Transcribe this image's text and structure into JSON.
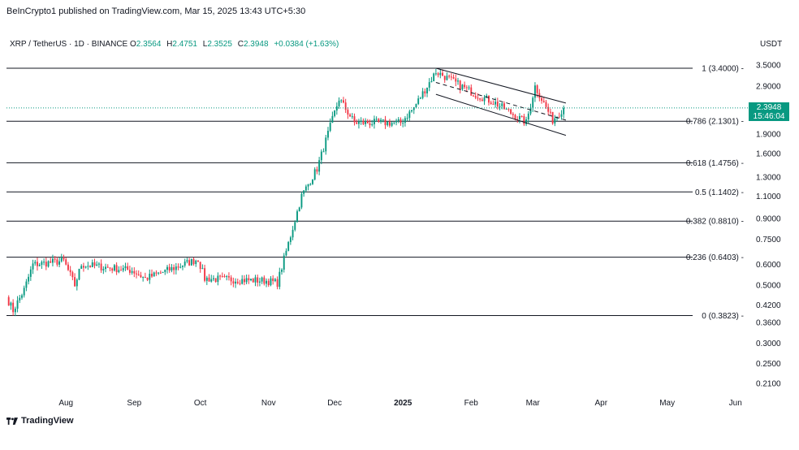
{
  "header": {
    "publisher": "BeInCrypto1 published on TradingView.com, Mar 15, 2025 13:43 UTC+5:30"
  },
  "symbol": {
    "title": "XRP / TetherUS · 1D · BINANCE",
    "open_label": "O",
    "open": "2.3564",
    "high_label": "H",
    "high": "2.4751",
    "low_label": "L",
    "low": "2.3525",
    "close_label": "C",
    "close": "2.3948",
    "change": "+0.0384 (+1.63%)"
  },
  "currency": "USDT",
  "last_price": {
    "value": "2.3948",
    "countdown": "15:46:04"
  },
  "footer": {
    "brand": "TradingView"
  },
  "colors": {
    "up": "#089981",
    "down": "#f23645",
    "level": "#131722",
    "grid": "#f0f3fa"
  },
  "chart_data": {
    "type": "candlestick",
    "y_scale": "log",
    "y_ticks": [
      "3.5000",
      "2.9000",
      "2.3000",
      "1.9000",
      "1.6000",
      "1.3000",
      "1.1000",
      "0.9000",
      "0.7500",
      "0.6000",
      "0.5000",
      "0.4200",
      "0.3600",
      "0.3000",
      "0.2500",
      "0.2100"
    ],
    "y_tick_values": [
      3.5,
      2.9,
      2.3,
      1.9,
      1.6,
      1.3,
      1.1,
      0.9,
      0.75,
      0.6,
      0.5,
      0.42,
      0.36,
      0.3,
      0.25,
      0.21
    ],
    "x_ticks": [
      "Aug",
      "Sep",
      "Oct",
      "Nov",
      "Dec",
      "2025",
      "Feb",
      "Mar",
      "Apr",
      "May",
      "Jun"
    ],
    "x_tick_dates": [
      "2024-08-01",
      "2024-09-01",
      "2024-10-01",
      "2024-11-01",
      "2024-12-01",
      "2025-01-01",
      "2025-02-01",
      "2025-03-01",
      "2025-04-01",
      "2025-05-01",
      "2025-06-01"
    ],
    "x_range": [
      "2024-07-05",
      "2025-06-07"
    ],
    "fib_levels": [
      {
        "label": "1 (3.4000)",
        "value": 3.4
      },
      {
        "label": "0.786 (2.1301)",
        "value": 2.1301
      },
      {
        "label": "0.618 (1.4756)",
        "value": 1.4756
      },
      {
        "label": "0.5 (1.1402)",
        "value": 1.1402
      },
      {
        "label": "0.382 (0.8810)",
        "value": 0.881
      },
      {
        "label": "0.236 (0.6403)",
        "value": 0.6403
      },
      {
        "label": "0 (0.3823)",
        "value": 0.3823
      }
    ],
    "channel": {
      "upper": [
        {
          "date": "2025-01-16",
          "price": 3.4
        },
        {
          "date": "2025-03-16",
          "price": 2.5
        }
      ],
      "middle": [
        {
          "date": "2025-01-16",
          "price": 3.0
        },
        {
          "date": "2025-03-16",
          "price": 2.15
        }
      ],
      "lower": [
        {
          "date": "2025-01-16",
          "price": 2.7
        },
        {
          "date": "2025-03-16",
          "price": 1.88
        }
      ]
    },
    "close_anchors": [
      {
        "date": "2024-07-05",
        "price": 0.45
      },
      {
        "date": "2024-07-08",
        "price": 0.4
      },
      {
        "date": "2024-07-13",
        "price": 0.48
      },
      {
        "date": "2024-07-17",
        "price": 0.6
      },
      {
        "date": "2024-07-31",
        "price": 0.62
      },
      {
        "date": "2024-08-05",
        "price": 0.5
      },
      {
        "date": "2024-08-08",
        "price": 0.6
      },
      {
        "date": "2024-08-31",
        "price": 0.57
      },
      {
        "date": "2024-09-06",
        "price": 0.53
      },
      {
        "date": "2024-09-30",
        "price": 0.63
      },
      {
        "date": "2024-10-03",
        "price": 0.53
      },
      {
        "date": "2024-10-31",
        "price": 0.52
      },
      {
        "date": "2024-11-05",
        "price": 0.51
      },
      {
        "date": "2024-11-16",
        "price": 1.1
      },
      {
        "date": "2024-11-23",
        "price": 1.4
      },
      {
        "date": "2024-12-03",
        "price": 2.6
      },
      {
        "date": "2024-12-10",
        "price": 2.1
      },
      {
        "date": "2024-12-31",
        "price": 2.1
      },
      {
        "date": "2025-01-06",
        "price": 2.4
      },
      {
        "date": "2025-01-16",
        "price": 3.3
      },
      {
        "date": "2025-02-03",
        "price": 2.7
      },
      {
        "date": "2025-02-12",
        "price": 2.5
      },
      {
        "date": "2025-02-26",
        "price": 2.1
      },
      {
        "date": "2025-03-02",
        "price": 2.9
      },
      {
        "date": "2025-03-10",
        "price": 2.15
      },
      {
        "date": "2025-03-15",
        "price": 2.3948
      }
    ],
    "last_close": 2.3948
  }
}
